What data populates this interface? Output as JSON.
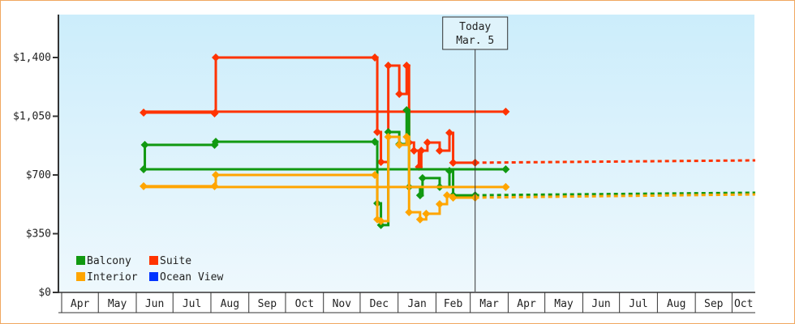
{
  "chart_data": {
    "type": "line",
    "step": true,
    "yticks": [
      "$0",
      "$350",
      "$700",
      "$1,050",
      "$1,400"
    ],
    "ytick_values": [
      0,
      350,
      700,
      1050,
      1400
    ],
    "ylim": [
      0,
      1680
    ],
    "xticks": [
      "Apr",
      "May",
      "Jun",
      "Jul",
      "Aug",
      "Sep",
      "Oct",
      "Nov",
      "Dec",
      "Jan",
      "Feb",
      "Mar",
      "Apr",
      "May",
      "Jun",
      "Jul",
      "Aug",
      "Sep",
      "Oct"
    ],
    "grid": false,
    "legend_position": "bottom-left",
    "today": {
      "label": "Today",
      "date_label": "Mar. 5",
      "date": "Mar 5"
    },
    "colors": {
      "Balcony": "#119911",
      "Suite": "#ff3300",
      "Interior": "#ffa500",
      "Ocean View": "#0033ff"
    },
    "series": [
      {
        "name": "Suite",
        "points": [
          [
            "Mar 30",
            1077
          ],
          [
            "Jun 7",
            1072
          ],
          [
            "Aug 4",
            1067
          ],
          [
            "Aug 5",
            1400
          ],
          [
            "Dec 13",
            1400
          ],
          [
            "Dec 15",
            956
          ],
          [
            "Dec 18",
            777
          ],
          [
            "Dec 24",
            1352
          ],
          [
            "Jan 2",
            1183
          ],
          [
            "Jan 8",
            1352
          ],
          [
            "Jan 10",
            893
          ],
          [
            "Jan 14",
            845
          ],
          [
            "Jan 18",
            748
          ],
          [
            "Jan 20",
            845
          ],
          [
            "Jan 25",
            893
          ],
          [
            "Feb 4",
            845
          ],
          [
            "Feb 12",
            951
          ],
          [
            "Feb 15",
            773
          ],
          [
            "Mar 5",
            773
          ]
        ],
        "forecast": [
          [
            "Mar 5",
            773
          ],
          [
            "Oct 20",
            787
          ]
        ]
      },
      {
        "name": "Balcony",
        "points": [
          [
            "Mar 30",
            734
          ],
          [
            "Jun 7",
            734
          ],
          [
            "Jun 8",
            879
          ],
          [
            "Aug 4",
            879
          ],
          [
            "Aug 5",
            898
          ],
          [
            "Dec 13",
            898
          ],
          [
            "Dec 15",
            531
          ],
          [
            "Dec 18",
            401
          ],
          [
            "Dec 24",
            956
          ],
          [
            "Jan 2",
            884
          ],
          [
            "Jan 8",
            1086
          ],
          [
            "Jan 10",
            628
          ],
          [
            "Jan 19",
            579
          ],
          [
            "Jan 21",
            681
          ],
          [
            "Feb 4",
            628
          ],
          [
            "Feb 12",
            724
          ],
          [
            "Feb 15",
            579
          ],
          [
            "Mar 5",
            579
          ]
        ],
        "forecast": [
          [
            "Mar 5",
            579
          ],
          [
            "Oct 20",
            594
          ]
        ]
      },
      {
        "name": "Interior",
        "points": [
          [
            "Mar 30",
            628
          ],
          [
            "Jun 7",
            633
          ],
          [
            "Aug 4",
            633
          ],
          [
            "Aug 5",
            700
          ],
          [
            "Dec 13",
            700
          ],
          [
            "Dec 15",
            435
          ],
          [
            "Dec 18",
            425
          ],
          [
            "Dec 24",
            927
          ],
          [
            "Jan 2",
            879
          ],
          [
            "Jan 8",
            927
          ],
          [
            "Jan 10",
            478
          ],
          [
            "Jan 19",
            435
          ],
          [
            "Jan 24",
            469
          ],
          [
            "Feb 4",
            526
          ],
          [
            "Feb 10",
            579
          ],
          [
            "Feb 15",
            565
          ],
          [
            "Mar 5",
            565
          ]
        ],
        "forecast": [
          [
            "Mar 5",
            565
          ],
          [
            "Oct 20",
            584
          ]
        ]
      },
      {
        "name": "Ocean View",
        "points": [],
        "forecast": []
      }
    ]
  }
}
